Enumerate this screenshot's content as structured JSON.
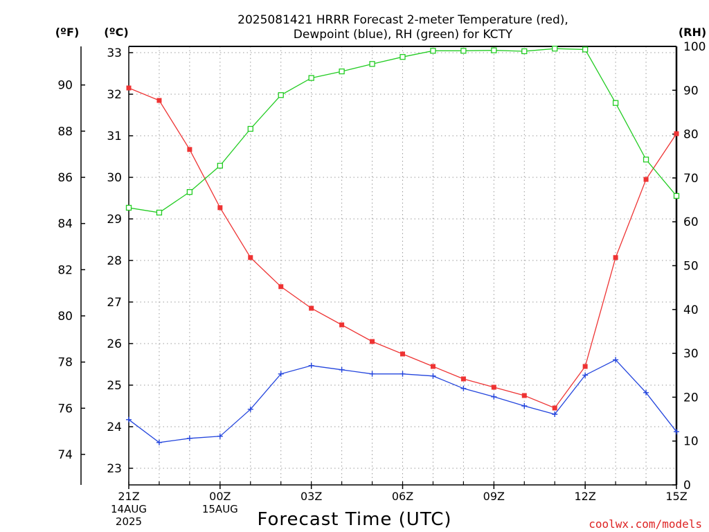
{
  "title_lines": [
    "2025081421 HRRR Forecast 2-meter Temperature (red),",
    "Dewpoint (blue), RH (green) for KCTY"
  ],
  "units": {
    "fahrenheit": "(ºF)",
    "celsius": "(ºC)",
    "rh": "(RH)"
  },
  "xlabel": "Forecast Time (UTC)",
  "credit": "coolwx.com/models",
  "colors": {
    "temperature": "#ee3333",
    "dewpoint": "#2244dd",
    "rh": "#22cc22",
    "credit": "#dd2222",
    "grid": "#999999"
  },
  "chart_data": {
    "type": "line",
    "title": "2025081421 HRRR Forecast 2-meter Temperature (red), Dewpoint (blue), RH (green) for KCTY",
    "xlabel": "Forecast Time (UTC)",
    "x": [
      0,
      1,
      2,
      3,
      4,
      5,
      6,
      7,
      8,
      9,
      10,
      11,
      12,
      13,
      14,
      15,
      16,
      17,
      18
    ],
    "x_ticks": [
      {
        "x": 0,
        "label": "21Z",
        "sub": [
          "14AUG",
          "2025"
        ]
      },
      {
        "x": 3,
        "label": "00Z",
        "sub": [
          "15AUG"
        ]
      },
      {
        "x": 6,
        "label": "03Z",
        "sub": []
      },
      {
        "x": 9,
        "label": "06Z",
        "sub": []
      },
      {
        "x": 12,
        "label": "09Z",
        "sub": []
      },
      {
        "x": 15,
        "label": "12Z",
        "sub": []
      },
      {
        "x": 18,
        "label": "15Z",
        "sub": []
      }
    ],
    "xlim": [
      0,
      18
    ],
    "y_celsius": {
      "ylim": [
        22.6,
        33.15
      ],
      "ticks": [
        23,
        24,
        25,
        26,
        27,
        28,
        29,
        30,
        31,
        32,
        33
      ]
    },
    "y_fahrenheit": {
      "ticks": [
        74,
        76,
        78,
        80,
        82,
        84,
        86,
        88,
        90
      ]
    },
    "y_rh": {
      "ylim": [
        0,
        100
      ],
      "ticks": [
        0,
        10,
        20,
        30,
        40,
        50,
        60,
        70,
        80,
        90,
        100
      ]
    },
    "grid": true,
    "series": [
      {
        "key": "temperature",
        "axis": "celsius",
        "marker": "filled-square",
        "values": [
          32.15,
          31.85,
          30.67,
          29.27,
          28.07,
          27.37,
          26.85,
          26.45,
          26.05,
          25.75,
          25.45,
          25.15,
          24.95,
          24.75,
          24.45,
          25.45,
          28.07,
          29.95,
          31.05
        ]
      },
      {
        "key": "dewpoint",
        "axis": "celsius",
        "marker": "plus",
        "values": [
          24.17,
          23.62,
          23.72,
          23.77,
          24.42,
          25.27,
          25.47,
          25.37,
          25.27,
          25.27,
          25.22,
          24.92,
          24.72,
          24.5,
          24.3,
          25.24,
          25.61,
          24.82,
          23.88
        ]
      },
      {
        "key": "rh",
        "axis": "rh",
        "marker": "open-square",
        "values": [
          63.2,
          62.1,
          66.8,
          72.8,
          81.2,
          88.9,
          92.8,
          94.3,
          96.0,
          97.6,
          99.0,
          99.0,
          99.1,
          98.9,
          99.5,
          99.3,
          87.1,
          74.2,
          65.9
        ]
      }
    ]
  }
}
